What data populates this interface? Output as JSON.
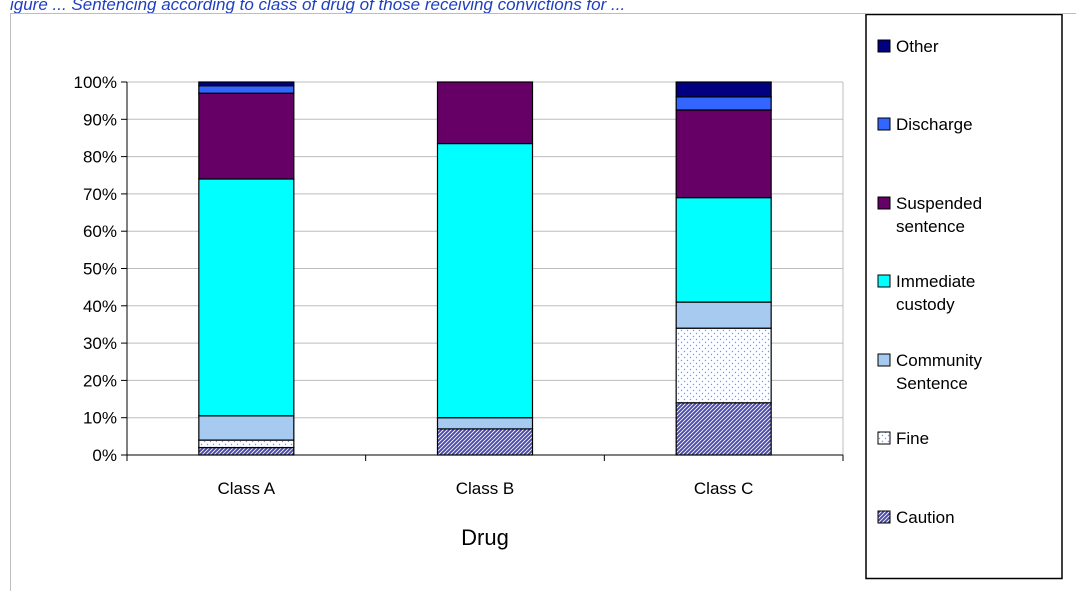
{
  "caption": "igure ... Sentencing according to class of drug of those receiving convictions for ...",
  "chart_data": {
    "type": "bar",
    "stacked": "percent",
    "categories": [
      "Class A",
      "Class B",
      "Class C"
    ],
    "xlabel": "Drug",
    "ylabel": "",
    "ylim": [
      0,
      100
    ],
    "yticks": [
      "0%",
      "10%",
      "20%",
      "30%",
      "40%",
      "50%",
      "60%",
      "70%",
      "80%",
      "90%",
      "100%"
    ],
    "grid": true,
    "legend_position": "right",
    "series": [
      {
        "name": "Caution",
        "values": [
          2,
          7,
          14
        ],
        "color": "#4b4bb4",
        "pattern": "diagonal-hatch"
      },
      {
        "name": "Fine",
        "values": [
          2,
          0,
          20
        ],
        "color": "#ffffff",
        "pattern": "dots"
      },
      {
        "name": "Community Sentence",
        "values": [
          6.5,
          3,
          7
        ],
        "color": "#a6caf0",
        "pattern": "solid"
      },
      {
        "name": "Immediate custody",
        "values": [
          63.5,
          73.5,
          28
        ],
        "color": "#00ffff",
        "pattern": "solid"
      },
      {
        "name": "Suspended sentence",
        "values": [
          23,
          16.5,
          23.5
        ],
        "color": "#660066",
        "pattern": "solid"
      },
      {
        "name": "Discharge",
        "values": [
          2,
          0,
          3.5
        ],
        "color": "#3366ff",
        "pattern": "solid"
      },
      {
        "name": "Other",
        "values": [
          1,
          0,
          4
        ],
        "color": "#000080",
        "pattern": "solid"
      }
    ]
  }
}
